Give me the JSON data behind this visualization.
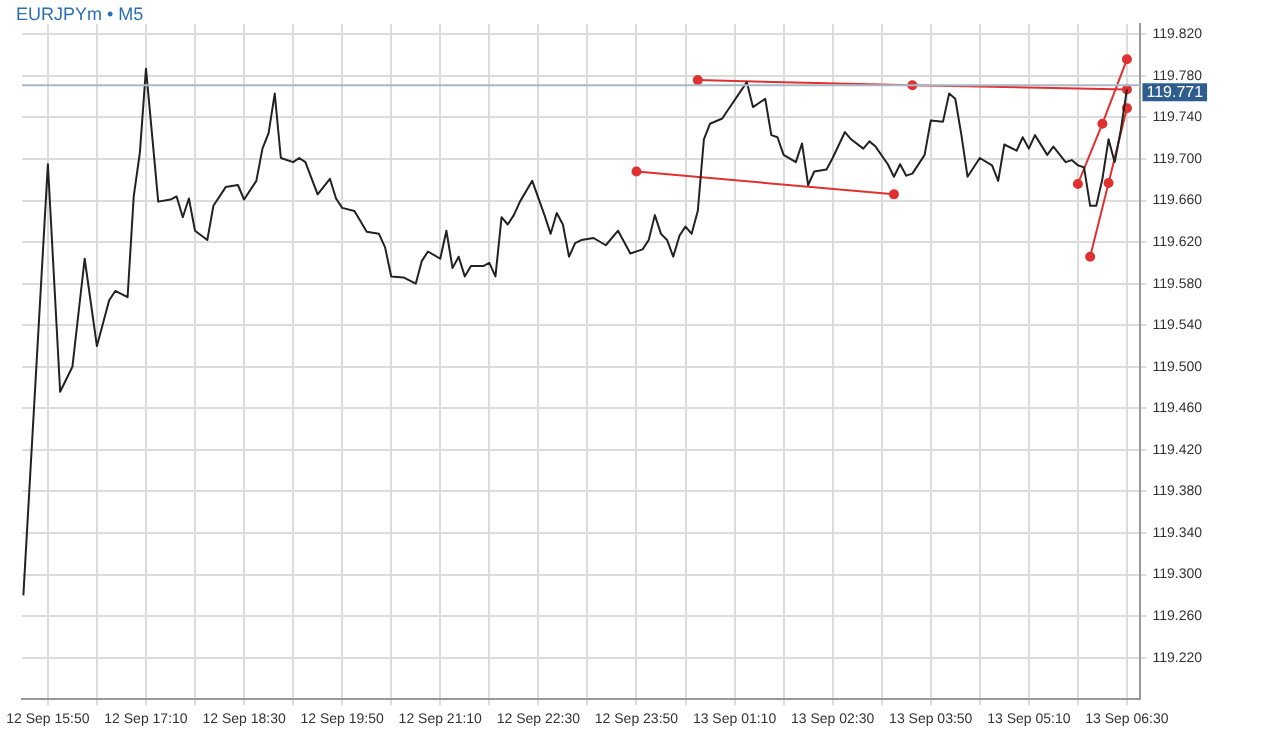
{
  "chart_data": {
    "type": "line",
    "title": "EURJPYm • M5",
    "xlim": [
      "--09-12T15:29",
      "--09-13T06:41"
    ],
    "ylim": [
      119.18,
      119.83
    ],
    "xticks": [
      {
        "value": "--09-12T15:50",
        "label": "12 Sep 15:50"
      },
      {
        "value": "--09-12T16:30",
        "label": null
      },
      {
        "value": "--09-12T17:10",
        "label": "12 Sep 17:10"
      },
      {
        "value": "--09-12T17:50",
        "label": null
      },
      {
        "value": "--09-12T18:30",
        "label": "12 Sep 18:30"
      },
      {
        "value": "--09-12T19:10",
        "label": null
      },
      {
        "value": "--09-12T19:50",
        "label": "12 Sep 19:50"
      },
      {
        "value": "--09-12T20:30",
        "label": null
      },
      {
        "value": "--09-12T21:10",
        "label": "12 Sep 21:10"
      },
      {
        "value": "--09-12T21:50",
        "label": null
      },
      {
        "value": "--09-12T22:30",
        "label": "12 Sep 22:30"
      },
      {
        "value": "--09-12T23:10",
        "label": null
      },
      {
        "value": "--09-12T23:50",
        "label": "12 Sep 23:50"
      },
      {
        "value": "--09-13T00:30",
        "label": null
      },
      {
        "value": "--09-13T01:10",
        "label": "13 Sep 01:10"
      },
      {
        "value": "--09-13T01:50",
        "label": null
      },
      {
        "value": "--09-13T02:30",
        "label": "13 Sep 02:30"
      },
      {
        "value": "--09-13T03:10",
        "label": null
      },
      {
        "value": "--09-13T03:50",
        "label": "13 Sep 03:50"
      },
      {
        "value": "--09-13T04:30",
        "label": null
      },
      {
        "value": "--09-13T05:10",
        "label": "13 Sep 05:10"
      },
      {
        "value": "--09-13T05:50",
        "label": null
      },
      {
        "value": "--09-13T06:30",
        "label": "13 Sep 06:30"
      }
    ],
    "yticks": [
      {
        "value": 119.22,
        "label": "119.220"
      },
      {
        "value": 119.26,
        "label": "119.260"
      },
      {
        "value": 119.3,
        "label": "119.300"
      },
      {
        "value": 119.34,
        "label": "119.340"
      },
      {
        "value": 119.38,
        "label": "119.380"
      },
      {
        "value": 119.42,
        "label": "119.420"
      },
      {
        "value": 119.46,
        "label": "119.460"
      },
      {
        "value": 119.5,
        "label": "119.500"
      },
      {
        "value": 119.54,
        "label": "119.540"
      },
      {
        "value": 119.58,
        "label": "119.580"
      },
      {
        "value": 119.62,
        "label": "119.620"
      },
      {
        "value": 119.66,
        "label": "119.660"
      },
      {
        "value": 119.7,
        "label": "119.700"
      },
      {
        "value": 119.74,
        "label": "119.740"
      },
      {
        "value": 119.78,
        "label": "119.780"
      },
      {
        "value": 119.82,
        "label": "119.820"
      }
    ],
    "grid": true,
    "legend": false,
    "marker": "none",
    "ref_lines": [
      {
        "axis": "y",
        "value": 119.771,
        "label": "119.771",
        "color": "#a9b7c6"
      }
    ],
    "series": [
      {
        "color": "#222222",
        "x": [
          "--09-12T15:30",
          "--09-12T15:50",
          "--09-12T16:00",
          "--09-12T16:10",
          "--09-12T16:20",
          "--09-12T16:30",
          "--09-12T16:40",
          "--09-12T16:45",
          "--09-12T16:55",
          "--09-12T17:00",
          "--09-12T17:05",
          "--09-12T17:10",
          "--09-12T17:20",
          "--09-12T17:30",
          "--09-12T17:35",
          "--09-12T17:40",
          "--09-12T17:45",
          "--09-12T17:50",
          "--09-12T18:00",
          "--09-12T18:05",
          "--09-12T18:15",
          "--09-12T18:25",
          "--09-12T18:30",
          "--09-12T18:40",
          "--09-12T18:45",
          "--09-12T18:50",
          "--09-12T18:55",
          "--09-12T19:00",
          "--09-12T19:10",
          "--09-12T19:15",
          "--09-12T19:20",
          "--09-12T19:30",
          "--09-12T19:40",
          "--09-12T19:45",
          "--09-12T19:50",
          "--09-12T20:00",
          "--09-12T20:05",
          "--09-12T20:10",
          "--09-12T20:20",
          "--09-12T20:25",
          "--09-12T20:30",
          "--09-12T20:40",
          "--09-12T20:50",
          "--09-12T20:55",
          "--09-12T21:00",
          "--09-12T21:10",
          "--09-12T21:15",
          "--09-12T21:20",
          "--09-12T21:25",
          "--09-12T21:30",
          "--09-12T21:35",
          "--09-12T21:45",
          "--09-12T21:50",
          "--09-12T21:55",
          "--09-12T22:00",
          "--09-12T22:05",
          "--09-12T22:10",
          "--09-12T22:15",
          "--09-12T22:25",
          "--09-12T22:35",
          "--09-12T22:40",
          "--09-12T22:45",
          "--09-12T22:50",
          "--09-12T22:55",
          "--09-12T23:00",
          "--09-12T23:05",
          "--09-12T23:15",
          "--09-12T23:25",
          "--09-12T23:35",
          "--09-12T23:45",
          "--09-12T23:55",
          "--09-13T00:00",
          "--09-13T00:05",
          "--09-13T00:10",
          "--09-13T00:15",
          "--09-13T00:20",
          "--09-13T00:25",
          "--09-13T00:30",
          "--09-13T00:35",
          "--09-13T00:40",
          "--09-13T00:45",
          "--09-13T00:50",
          "--09-13T01:00",
          "--09-13T01:05",
          "--09-13T01:20",
          "--09-13T01:25",
          "--09-13T01:35",
          "--09-13T01:40",
          "--09-13T01:45",
          "--09-13T01:50",
          "--09-13T02:00",
          "--09-13T02:05",
          "--09-13T02:10",
          "--09-13T02:15",
          "--09-13T02:25",
          "--09-13T02:30",
          "--09-13T02:40",
          "--09-13T02:45",
          "--09-13T02:55",
          "--09-13T03:00",
          "--09-13T03:05",
          "--09-13T03:15",
          "--09-13T03:20",
          "--09-13T03:25",
          "--09-13T03:30",
          "--09-13T03:35",
          "--09-13T03:45",
          "--09-13T03:50",
          "--09-13T04:00",
          "--09-13T04:05",
          "--09-13T04:10",
          "--09-13T04:15",
          "--09-13T04:20",
          "--09-13T04:30",
          "--09-13T04:40",
          "--09-13T04:45",
          "--09-13T04:50",
          "--09-13T05:00",
          "--09-13T05:05",
          "--09-13T05:10",
          "--09-13T05:15",
          "--09-13T05:25",
          "--09-13T05:30",
          "--09-13T05:40",
          "--09-13T05:45",
          "--09-13T05:50",
          "--09-13T05:55",
          "--09-13T06:00",
          "--09-13T06:05",
          "--09-13T06:10",
          "--09-13T06:15",
          "--09-13T06:20",
          "--09-13T06:25",
          "--09-13T06:30"
        ],
        "values": [
          119.28,
          119.695,
          119.476,
          119.5,
          119.604,
          119.52,
          119.564,
          119.573,
          119.567,
          119.664,
          119.706,
          119.787,
          119.659,
          119.661,
          119.664,
          119.644,
          119.662,
          119.631,
          119.622,
          119.655,
          119.673,
          119.675,
          119.661,
          119.679,
          119.71,
          119.725,
          119.763,
          119.701,
          119.697,
          119.701,
          119.697,
          119.666,
          119.681,
          119.662,
          119.653,
          119.65,
          119.64,
          119.63,
          119.628,
          119.615,
          119.587,
          119.586,
          119.58,
          119.602,
          119.611,
          119.604,
          119.631,
          119.595,
          119.606,
          119.587,
          119.597,
          119.597,
          119.6,
          119.587,
          119.644,
          119.637,
          119.646,
          119.659,
          119.679,
          119.646,
          119.628,
          119.648,
          119.637,
          119.606,
          119.619,
          119.622,
          119.624,
          119.617,
          119.631,
          119.609,
          119.613,
          119.622,
          119.646,
          119.628,
          119.622,
          119.606,
          119.626,
          119.635,
          119.628,
          119.65,
          119.719,
          119.734,
          119.739,
          119.748,
          119.774,
          119.75,
          119.758,
          119.723,
          119.721,
          119.704,
          119.697,
          119.715,
          119.675,
          119.688,
          119.69,
          119.701,
          119.726,
          119.719,
          119.71,
          119.717,
          119.712,
          119.695,
          119.683,
          119.695,
          119.684,
          119.686,
          119.704,
          119.737,
          119.736,
          119.763,
          119.758,
          119.723,
          119.683,
          119.701,
          119.694,
          119.679,
          119.714,
          119.708,
          119.721,
          119.71,
          119.723,
          119.704,
          119.712,
          119.697,
          119.699,
          119.694,
          119.692,
          119.655,
          119.655,
          119.681,
          119.719,
          119.697,
          119.728,
          119.767
        ]
      },
      {
        "color": "#e03030",
        "marker": "circle",
        "x": [
          "--09-13T00:40",
          "--09-13T03:35",
          "--09-13T06:30"
        ],
        "values": [
          119.776,
          119.771,
          119.767
        ]
      },
      {
        "color": "#e03030",
        "marker": "circle",
        "x": [
          "--09-12T23:50",
          "--09-13T03:20"
        ],
        "values": [
          119.688,
          119.666
        ]
      },
      {
        "color": "#e03030",
        "marker": "circle",
        "x": [
          "--09-13T05:50",
          "--09-13T06:10",
          "--09-13T06:30"
        ],
        "values": [
          119.676,
          119.734,
          119.796
        ]
      },
      {
        "color": "#e03030",
        "marker": "circle",
        "x": [
          "--09-13T06:00",
          "--09-13T06:15",
          "--09-13T06:30"
        ],
        "values": [
          119.606,
          119.677,
          119.749
        ]
      }
    ]
  }
}
